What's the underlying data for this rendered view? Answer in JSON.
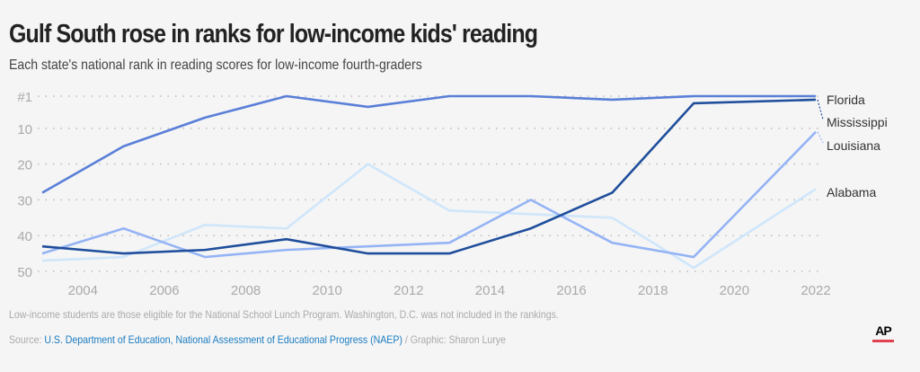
{
  "chart_data": {
    "type": "line",
    "title": "Gulf South rose in ranks for low-income kids' reading",
    "subtitle": "Each state's national rank in reading scores for low-income fourth-graders",
    "x": [
      2003,
      2005,
      2007,
      2009,
      2011,
      2013,
      2015,
      2017,
      2019,
      2022
    ],
    "x_ticks": [
      "2004",
      "2006",
      "2008",
      "2010",
      "2012",
      "2014",
      "2016",
      "2018",
      "2020",
      "2022"
    ],
    "y_ticks": [
      "#1",
      "10",
      "20",
      "30",
      "40",
      "50"
    ],
    "ylim": [
      1,
      50
    ],
    "y_inverted": true,
    "grid": "horizontal dotted",
    "series": [
      {
        "name": "Florida",
        "color": "#5a7fd8",
        "values": [
          28,
          15,
          7,
          1,
          4,
          1,
          1,
          2,
          1,
          1
        ]
      },
      {
        "name": "Mississippi",
        "color": "#1f4e9c",
        "values": [
          43,
          45,
          44,
          41,
          45,
          45,
          38,
          28,
          3,
          2
        ]
      },
      {
        "name": "Louisiana",
        "color": "#95b4f5",
        "values": [
          45,
          38,
          46,
          44,
          43,
          42,
          30,
          42,
          46,
          11
        ]
      },
      {
        "name": "Alabama",
        "color": "#cfe6fb",
        "values": [
          47,
          46,
          37,
          38,
          20,
          33,
          34,
          35,
          49,
          27
        ]
      }
    ]
  },
  "footer": {
    "note": "Low-income students are those eligible for the National School Lunch Program. Washington, D.C. was not included in the rankings.",
    "source_label": "Source:",
    "source_link": "U.S. Department of Education, National Assessment of Educational Progress (NAEP)",
    "credit": "/ Graphic: Sharon Lurye",
    "logo": "AP"
  }
}
